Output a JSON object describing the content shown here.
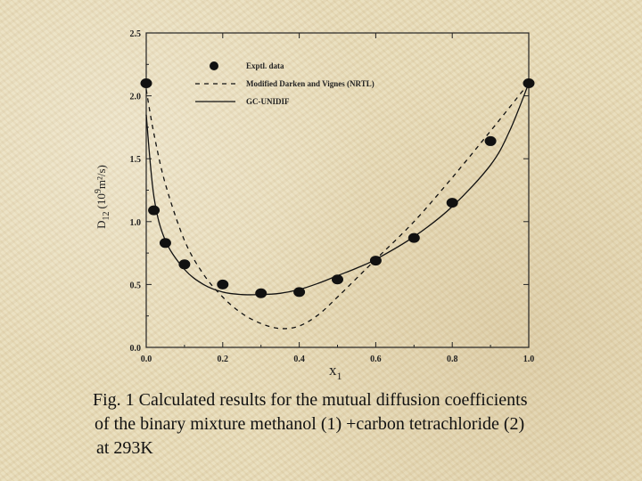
{
  "chart_data": {
    "type": "scatter",
    "title": "",
    "xlabel": "x",
    "xlabel_sub": "1",
    "ylabel": {
      "D": "D",
      "sub": "12",
      "unit_open": "(10",
      "sup": "9",
      "unit_close": "m²/s)"
    },
    "xlim": [
      0.0,
      1.0
    ],
    "ylim": [
      0.0,
      2.5
    ],
    "x_ticks": [
      "0.0",
      "0.2",
      "0.4",
      "0.6",
      "0.8",
      "1.0"
    ],
    "y_ticks": [
      "0.0",
      "0.5",
      "1.0",
      "1.5",
      "2.0",
      "2.5"
    ],
    "legend_position": "top-left",
    "series": [
      {
        "name": "Exptl. data",
        "style": "markers",
        "x": [
          0.0,
          0.02,
          0.05,
          0.1,
          0.2,
          0.3,
          0.4,
          0.5,
          0.6,
          0.7,
          0.8,
          0.9,
          1.0
        ],
        "y": [
          2.1,
          1.09,
          0.83,
          0.66,
          0.5,
          0.43,
          0.44,
          0.54,
          0.69,
          0.87,
          1.15,
          1.64,
          2.1
        ]
      },
      {
        "name": "Modified Darken and Vignes (NRTL)",
        "style": "dashed",
        "x": [
          0.0,
          0.02,
          0.05,
          0.1,
          0.15,
          0.2,
          0.25,
          0.3,
          0.35,
          0.4,
          0.45,
          0.5,
          0.55,
          0.6,
          0.7,
          0.8,
          0.9,
          1.0
        ],
        "y": [
          2.05,
          1.7,
          1.3,
          0.85,
          0.58,
          0.4,
          0.27,
          0.19,
          0.15,
          0.17,
          0.26,
          0.4,
          0.55,
          0.7,
          1.0,
          1.35,
          1.72,
          2.1
        ]
      },
      {
        "name": "GC-UNIDIF",
        "style": "solid",
        "x": [
          0.0,
          0.02,
          0.05,
          0.1,
          0.15,
          0.2,
          0.25,
          0.3,
          0.35,
          0.4,
          0.45,
          0.5,
          0.55,
          0.6,
          0.7,
          0.8,
          0.9,
          0.95,
          1.0
        ],
        "y": [
          1.85,
          1.2,
          0.85,
          0.62,
          0.5,
          0.44,
          0.42,
          0.42,
          0.43,
          0.46,
          0.51,
          0.57,
          0.63,
          0.7,
          0.88,
          1.12,
          1.45,
          1.72,
          2.1
        ]
      }
    ]
  },
  "caption": {
    "line1": "Fig. 1 Calculated results for the mutual diffusion coefficients",
    "line2": "of the binary mixture methanol (1) +carbon tetrachloride (2)",
    "line3": "at 293K"
  }
}
